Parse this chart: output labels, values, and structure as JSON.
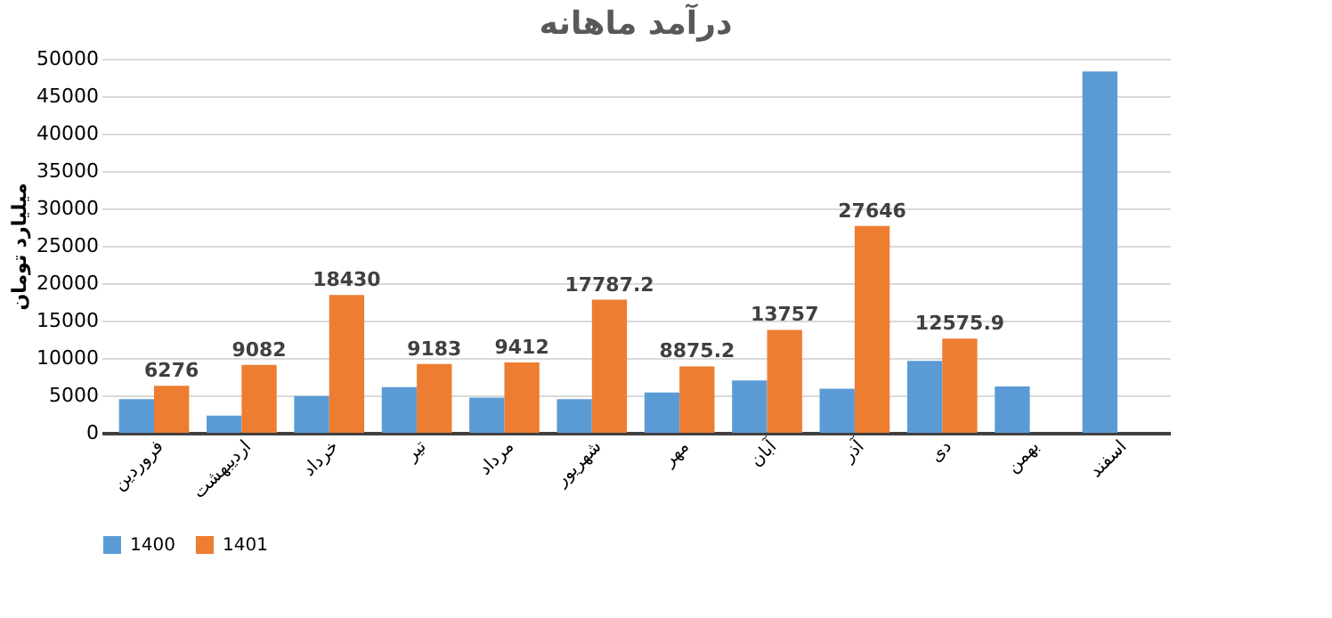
{
  "chart_data": {
    "type": "bar",
    "title": "درآمد ماهانه",
    "ylabel": "میلیارد تومان",
    "categories": [
      "فروردین",
      "اردیبهشت",
      "خرداد",
      "تیر",
      "مرداد",
      "شهریور",
      "مهر",
      "آبان",
      "آذر",
      "دی",
      "بهمن",
      "اسفند"
    ],
    "series": [
      {
        "name": "1400",
        "color": "#5b9bd5",
        "values": [
          4500,
          2300,
          4900,
          6100,
          4700,
          4500,
          5400,
          7000,
          5900,
          9600,
          6200,
          48300
        ]
      },
      {
        "name": "1401",
        "color": "#ed7d31",
        "values": [
          6276,
          9082,
          18430,
          9183,
          9412,
          17787.2,
          8875.2,
          13757,
          27646,
          12575.9,
          null,
          null
        ],
        "value_labels": [
          "6276",
          "9082",
          "18430",
          "9183",
          "9412",
          "17787.2",
          "8875.2",
          "13757",
          "27646",
          "12575.9",
          null,
          null
        ]
      }
    ],
    "ylim": [
      0,
      50000
    ],
    "yticks": [
      0,
      5000,
      10000,
      15000,
      20000,
      25000,
      30000,
      35000,
      40000,
      45000,
      50000
    ],
    "grid": "y",
    "legend": "bottom"
  }
}
